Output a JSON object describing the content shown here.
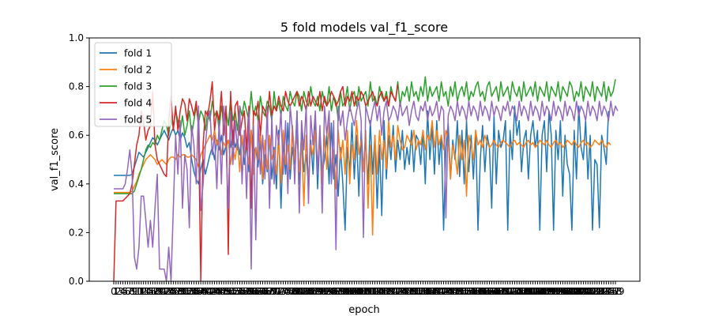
{
  "chart_data": {
    "type": "line",
    "title": "5 fold models val_f1_score",
    "xlabel": "epoch",
    "ylabel": "val_f1_score",
    "xlim": [
      0,
      219
    ],
    "ylim": [
      0,
      1.0
    ],
    "yticks": [
      "0.0",
      "0.2",
      "0.4",
      "0.6",
      "0.8",
      "1.0"
    ],
    "grid": false,
    "legend_position": "top-left",
    "series": [
      {
        "name": "fold 1",
        "color": "#1f77b4",
        "values": [
          0.435,
          0.435,
          0.435,
          0.435,
          0.435,
          0.435,
          0.435,
          0.435,
          0.44,
          0.47,
          0.5,
          0.53,
          0.52,
          0.51,
          0.53,
          0.55,
          0.57,
          0.59,
          0.58,
          0.56,
          0.58,
          0.6,
          0.62,
          0.6,
          0.58,
          0.61,
          0.63,
          0.6,
          0.62,
          0.58,
          0.61,
          0.59,
          0.55,
          0.57,
          0.5,
          0.45,
          0.42,
          0.4,
          0.46,
          0.5,
          0.44,
          0.48,
          0.52,
          0.55,
          0.5,
          0.58,
          0.54,
          0.6,
          0.52,
          0.56,
          0.58,
          0.55,
          0.62,
          0.55,
          0.58,
          0.52,
          0.6,
          0.48,
          0.56,
          0.45,
          0.62,
          0.52,
          0.55,
          0.47,
          0.58,
          0.4,
          0.52,
          0.45,
          0.6,
          0.42,
          0.55,
          0.38,
          0.62,
          0.3,
          0.58,
          0.44,
          0.65,
          0.42,
          0.55,
          0.48,
          0.7,
          0.4,
          0.62,
          0.45,
          0.52,
          0.4,
          0.58,
          0.44,
          0.65,
          0.38,
          0.62,
          0.45,
          0.5,
          0.6,
          0.4,
          0.65,
          0.42,
          0.52,
          0.35,
          0.55,
          0.4,
          0.21,
          0.55,
          0.45,
          0.65,
          0.42,
          0.6,
          0.35,
          0.62,
          0.46,
          0.58,
          0.4,
          0.66,
          0.44,
          0.6,
          0.3,
          0.56,
          0.27,
          0.66,
          0.42,
          0.6,
          0.5,
          0.64,
          0.45,
          0.58,
          0.5,
          0.62,
          0.46,
          0.55,
          0.48,
          0.62,
          0.45,
          0.6,
          0.58,
          0.48,
          0.62,
          0.4,
          0.7,
          0.5,
          0.64,
          0.44,
          0.66,
          0.48,
          0.6,
          0.21,
          0.55,
          0.65,
          0.42,
          0.58,
          0.5,
          0.66,
          0.43,
          0.62,
          0.4,
          0.66,
          0.45,
          0.6,
          0.42,
          0.62,
          0.21,
          0.5,
          0.64,
          0.45,
          0.6,
          0.55,
          0.3,
          0.68,
          0.4,
          0.62,
          0.55,
          0.58,
          0.66,
          0.21,
          0.62,
          0.5,
          0.72,
          0.6,
          0.66,
          0.45,
          0.58,
          0.62,
          0.42,
          0.6,
          0.66,
          0.55,
          0.62,
          0.21,
          0.6,
          0.66,
          0.45,
          0.7,
          0.6,
          0.21,
          0.62,
          0.5,
          0.66,
          0.35,
          0.6,
          0.48,
          0.44,
          0.21,
          0.62,
          0.42,
          0.72,
          0.55,
          0.5,
          0.66,
          0.42,
          0.6,
          0.21,
          0.5,
          0.48,
          0.22,
          0.6,
          0.55,
          0.48,
          0.7
        ]
      },
      {
        "name": "fold 2",
        "color": "#ff7f0e",
        "values": [
          0.365,
          0.365,
          0.365,
          0.365,
          0.365,
          0.365,
          0.365,
          0.365,
          0.37,
          0.39,
          0.41,
          0.44,
          0.46,
          0.48,
          0.5,
          0.51,
          0.52,
          0.51,
          0.5,
          0.48,
          0.49,
          0.5,
          0.49,
          0.48,
          0.5,
          0.51,
          0.51,
          0.5,
          0.52,
          0.51,
          0.52,
          0.52,
          0.51,
          0.51,
          0.52,
          0.51,
          0.5,
          0.47,
          0.52,
          0.54,
          0.56,
          0.58,
          0.6,
          0.58,
          0.62,
          0.56,
          0.6,
          0.52,
          0.57,
          0.55,
          0.58,
          0.48,
          0.55,
          0.5,
          0.58,
          0.45,
          0.6,
          0.52,
          0.56,
          0.48,
          0.62,
          0.44,
          0.55,
          0.5,
          0.62,
          0.42,
          0.58,
          0.46,
          0.6,
          0.5,
          0.54,
          0.44,
          0.6,
          0.4,
          0.62,
          0.48,
          0.56,
          0.46,
          0.64,
          0.5,
          0.6,
          0.45,
          0.58,
          0.31,
          0.6,
          0.4,
          0.56,
          0.52,
          0.62,
          0.48,
          0.58,
          0.4,
          0.6,
          0.46,
          0.65,
          0.42,
          0.54,
          0.38,
          0.62,
          0.5,
          0.58,
          0.44,
          0.62,
          0.4,
          0.56,
          0.5,
          0.66,
          0.52,
          0.58,
          0.45,
          0.62,
          0.3,
          0.56,
          0.19,
          0.6,
          0.44,
          0.62,
          0.5,
          0.58,
          0.46,
          0.66,
          0.55,
          0.6,
          0.5,
          0.64,
          0.58,
          0.54,
          0.55,
          0.6,
          0.58,
          0.56,
          0.62,
          0.54,
          0.58,
          0.56,
          0.62,
          0.54,
          0.6,
          0.58,
          0.66,
          0.55,
          0.62,
          0.56,
          0.6,
          0.54,
          0.62,
          0.58,
          0.42,
          0.56,
          0.52,
          0.44,
          0.6,
          0.5,
          0.58,
          0.35,
          0.6,
          0.56,
          0.5,
          0.62,
          0.56,
          0.58,
          0.55,
          0.6,
          0.57,
          0.55,
          0.56,
          0.58,
          0.56,
          0.55,
          0.57,
          0.58,
          0.57,
          0.56,
          0.55,
          0.57,
          0.58,
          0.56,
          0.57,
          0.56,
          0.55,
          0.57,
          0.58,
          0.56,
          0.57,
          0.55,
          0.56,
          0.58,
          0.57,
          0.56,
          0.58,
          0.56,
          0.55,
          0.57,
          0.58,
          0.56,
          0.57,
          0.55,
          0.56,
          0.58,
          0.57,
          0.56,
          0.58,
          0.56,
          0.55,
          0.57,
          0.58,
          0.56,
          0.57,
          0.55,
          0.56,
          0.58,
          0.57,
          0.56,
          0.58,
          0.56,
          0.55,
          0.57,
          0.56
        ]
      },
      {
        "name": "fold 3",
        "color": "#2ca02c",
        "values": [
          0.36,
          0.36,
          0.36,
          0.36,
          0.36,
          0.36,
          0.36,
          0.36,
          0.36,
          0.37,
          0.4,
          0.43,
          0.46,
          0.5,
          0.54,
          0.56,
          0.55,
          0.57,
          0.56,
          0.6,
          0.58,
          0.62,
          0.66,
          0.64,
          0.6,
          0.68,
          0.63,
          0.7,
          0.66,
          0.62,
          0.68,
          0.6,
          0.64,
          0.7,
          0.6,
          0.66,
          0.72,
          0.65,
          0.7,
          0.68,
          0.62,
          0.7,
          0.66,
          0.74,
          0.68,
          0.7,
          0.62,
          0.72,
          0.66,
          0.7,
          0.64,
          0.75,
          0.66,
          0.7,
          0.62,
          0.72,
          0.68,
          0.74,
          0.7,
          0.66,
          0.78,
          0.68,
          0.72,
          0.66,
          0.76,
          0.7,
          0.68,
          0.74,
          0.72,
          0.66,
          0.78,
          0.7,
          0.74,
          0.68,
          0.76,
          0.72,
          0.7,
          0.78,
          0.74,
          0.72,
          0.78,
          0.76,
          0.7,
          0.78,
          0.74,
          0.72,
          0.8,
          0.74,
          0.72,
          0.76,
          0.7,
          0.78,
          0.74,
          0.72,
          0.8,
          0.7,
          0.76,
          0.74,
          0.66,
          0.78,
          0.72,
          0.74,
          0.8,
          0.7,
          0.76,
          0.78,
          0.72,
          0.8,
          0.74,
          0.76,
          0.78,
          0.72,
          0.82,
          0.74,
          0.76,
          0.72,
          0.8,
          0.76,
          0.74,
          0.78,
          0.72,
          0.8,
          0.76,
          0.74,
          0.82,
          0.72,
          0.78,
          0.76,
          0.8,
          0.74,
          0.82,
          0.76,
          0.78,
          0.74,
          0.8,
          0.76,
          0.84,
          0.74,
          0.8,
          0.76,
          0.78,
          0.8,
          0.74,
          0.82,
          0.76,
          0.78,
          0.72,
          0.8,
          0.76,
          0.82,
          0.74,
          0.78,
          0.8,
          0.76,
          0.82,
          0.74,
          0.78,
          0.76,
          0.8,
          0.82,
          0.76,
          0.78,
          0.74,
          0.8,
          0.82,
          0.76,
          0.78,
          0.8,
          0.74,
          0.82,
          0.76,
          0.78,
          0.8,
          0.74,
          0.82,
          0.78,
          0.76,
          0.8,
          0.74,
          0.82,
          0.76,
          0.78,
          0.8,
          0.76,
          0.82,
          0.74,
          0.8,
          0.78,
          0.76,
          0.82,
          0.74,
          0.8,
          0.78,
          0.76,
          0.82,
          0.74,
          0.8,
          0.78,
          0.76,
          0.82,
          0.8,
          0.74,
          0.78,
          0.76,
          0.82,
          0.74,
          0.8,
          0.78,
          0.76,
          0.82,
          0.74,
          0.8,
          0.78,
          0.76,
          0.82,
          0.74,
          0.8,
          0.76,
          0.78,
          0.83
        ]
      },
      {
        "name": "fold 4",
        "color": "#d62728",
        "values": [
          0.0,
          0.33,
          0.33,
          0.33,
          0.33,
          0.34,
          0.35,
          0.36,
          0.4,
          0.48,
          0.56,
          0.6,
          0.7,
          0.66,
          0.58,
          0.62,
          0.64,
          0.78,
          0.56,
          0.5,
          0.48,
          0.46,
          0.44,
          0.43,
          0.66,
          0.76,
          0.62,
          0.72,
          0.62,
          0.7,
          0.75,
          0.73,
          0.66,
          0.75,
          0.72,
          0.68,
          0.74,
          0.63,
          0.0,
          0.56,
          0.7,
          0.68,
          0.74,
          0.82,
          0.62,
          0.7,
          0.66,
          0.78,
          0.6,
          0.72,
          0.11,
          0.78,
          0.56,
          0.72,
          0.74,
          0.6,
          0.66,
          0.7,
          0.54,
          0.72,
          0.3,
          0.7,
          0.68,
          0.74,
          0.6,
          0.72,
          0.7,
          0.66,
          0.78,
          0.68,
          0.72,
          0.7,
          0.76,
          0.72,
          0.7,
          0.78,
          0.74,
          0.72,
          0.74,
          0.76,
          0.78,
          0.72,
          0.76,
          0.74,
          0.7,
          0.78,
          0.72,
          0.76,
          0.74,
          0.72,
          0.78,
          0.7,
          0.76,
          0.72,
          0.74,
          0.78,
          0.76,
          0.72,
          0.74,
          0.78,
          0.8,
          0.72,
          0.76,
          0.74,
          0.78,
          0.72,
          0.76,
          0.74,
          0.78,
          0.76,
          0.72,
          0.74,
          0.76,
          0.78,
          0.74,
          0.72,
          0.76,
          0.78,
          0.74,
          0.76,
          0.72,
          0.78,
          0.76,
          0.74,
          0.81
        ]
      },
      {
        "name": "fold 5",
        "color": "#9467bd",
        "values": [
          0.38,
          0.38,
          0.38,
          0.38,
          0.38,
          0.4,
          0.46,
          0.54,
          0.44,
          0.1,
          0.05,
          0.14,
          0.35,
          0.35,
          0.25,
          0.14,
          0.25,
          0.14,
          0.3,
          0.44,
          0.05,
          0.05,
          0.05,
          0.0,
          0.14,
          0.0,
          0.3,
          0.6,
          0.44,
          0.66,
          0.3,
          0.52,
          0.46,
          0.22,
          0.64,
          0.56,
          0.4,
          0.72,
          0.29,
          0.4,
          0.56,
          0.66,
          0.7,
          0.52,
          0.6,
          0.38,
          0.66,
          0.4,
          0.72,
          0.56,
          0.3,
          0.7,
          0.48,
          0.66,
          0.54,
          0.72,
          0.4,
          0.62,
          0.34,
          0.7,
          0.05,
          0.64,
          0.17,
          0.66,
          0.44,
          0.6,
          0.42,
          0.72,
          0.3,
          0.68,
          0.4,
          0.64,
          0.56,
          0.7,
          0.44,
          0.66,
          0.36,
          0.72,
          0.62,
          0.4,
          0.7,
          0.28,
          0.66,
          0.54,
          0.72,
          0.32,
          0.68,
          0.56,
          0.7,
          0.44,
          0.64,
          0.28,
          0.72,
          0.6,
          0.7,
          0.4,
          0.66,
          0.13,
          0.72,
          0.64,
          0.7,
          0.58,
          0.66,
          0.72,
          0.68,
          0.64,
          0.7,
          0.74,
          0.66,
          0.18,
          0.72,
          0.68,
          0.64,
          0.7,
          0.74,
          0.66,
          0.72,
          0.6,
          0.7,
          0.74,
          0.66,
          0.68,
          0.72,
          0.7,
          0.66,
          0.74,
          0.68,
          0.7,
          0.72,
          0.64,
          0.7,
          0.74,
          0.68,
          0.66,
          0.72,
          0.7,
          0.74,
          0.66,
          0.72,
          0.68,
          0.7,
          0.74,
          0.66,
          0.72,
          0.7,
          0.26,
          0.68,
          0.72,
          0.7,
          0.66,
          0.74,
          0.68,
          0.72,
          0.7,
          0.66,
          0.74,
          0.68,
          0.72,
          0.7,
          0.66,
          0.74,
          0.68,
          0.72,
          0.7,
          0.66,
          0.74,
          0.68,
          0.72,
          0.7,
          0.66,
          0.72,
          0.7,
          0.74,
          0.68,
          0.72,
          0.7,
          0.66,
          0.74,
          0.68,
          0.72,
          0.7,
          0.66,
          0.74,
          0.68,
          0.72,
          0.7,
          0.66,
          0.74,
          0.68,
          0.72,
          0.7,
          0.66,
          0.74,
          0.68,
          0.72,
          0.7,
          0.66,
          0.74,
          0.68,
          0.72,
          0.7,
          0.66,
          0.74,
          0.68,
          0.72,
          0.7,
          0.66,
          0.74,
          0.68,
          0.72,
          0.7,
          0.66,
          0.74,
          0.68,
          0.72,
          0.7,
          0.66,
          0.74,
          0.68,
          0.72,
          0.7
        ]
      }
    ]
  }
}
